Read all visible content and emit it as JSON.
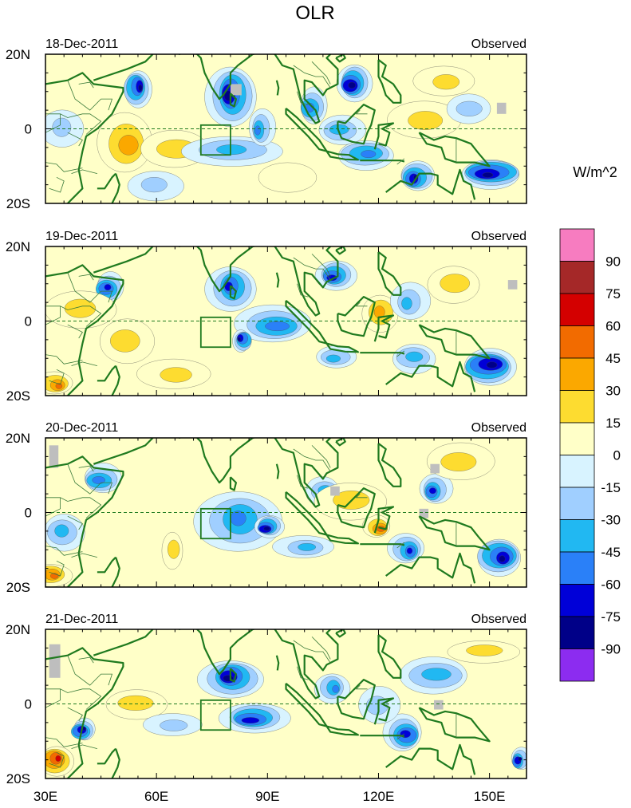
{
  "title": "OLR",
  "units_label": "W/m^2",
  "colors": {
    "coast": "#1f7a1f",
    "border": "#3a7a3a",
    "missing": "#bebebe",
    "equator": "#1f7a1f"
  },
  "chart_data": {
    "type": "heatmap",
    "title": "OLR",
    "variable": "OLR anomaly",
    "units": "W/m^2",
    "x_ticks": [
      "30E",
      "60E",
      "90E",
      "120E",
      "150E"
    ],
    "x_tick_values": [
      30,
      60,
      90,
      120,
      150
    ],
    "xlim": [
      30,
      160
    ],
    "y_ticks": [
      "20N",
      "0",
      "20S"
    ],
    "y_tick_values": [
      20,
      0,
      -20
    ],
    "ylim": [
      -20,
      20
    ],
    "box_region": {
      "lon": [
        72,
        80
      ],
      "lat": [
        -7,
        1
      ]
    },
    "legend": {
      "position": "right",
      "levels": [
        -90,
        -75,
        -60,
        -45,
        -30,
        -15,
        0,
        15,
        30,
        45,
        60,
        75,
        90
      ],
      "labels": [
        "90",
        "75",
        "60",
        "45",
        "30",
        "15",
        "0",
        "-15",
        "-30",
        "-45",
        "-60",
        "-75",
        "-90"
      ],
      "colors_top_to_bottom": [
        "#f77cc0",
        "#a52828",
        "#d40000",
        "#f26b00",
        "#fba800",
        "#fddc30",
        "#ffffc8",
        "#d8f3ff",
        "#a0cfff",
        "#21b8f2",
        "#2a80f8",
        "#0000d8",
        "#000088",
        "#8c2cf0"
      ]
    },
    "panels": [
      {
        "date": "18-Dec-2011",
        "label": "Observed",
        "features": [
          {
            "lon": 80,
            "lat": 9,
            "rx": 7,
            "ry": 8,
            "v": -80
          },
          {
            "lon": 113,
            "lat": 12,
            "rx": 6,
            "ry": 5,
            "v": -90
          },
          {
            "lon": 102,
            "lat": 6,
            "rx": 5,
            "ry": 5,
            "v": -50
          },
          {
            "lon": 55,
            "lat": 11,
            "rx": 4,
            "ry": 5,
            "v": -85
          },
          {
            "lon": 35,
            "lat": 0,
            "rx": 6,
            "ry": 5,
            "v": -30
          },
          {
            "lon": 52,
            "lat": -4,
            "rx": 10,
            "ry": 8,
            "v": 35
          },
          {
            "lon": 65,
            "lat": -5,
            "rx": 12,
            "ry": 5,
            "v": 20
          },
          {
            "lon": 80,
            "lat": -6,
            "rx": 14,
            "ry": 4,
            "v": -35
          },
          {
            "lon": 88,
            "lat": 0,
            "rx": 4,
            "ry": 5,
            "v": -55
          },
          {
            "lon": 110,
            "lat": 0,
            "rx": 9,
            "ry": 4,
            "v": -45
          },
          {
            "lon": 117,
            "lat": -7,
            "rx": 9,
            "ry": 4,
            "v": -60
          },
          {
            "lon": 133,
            "lat": 2,
            "rx": 10,
            "ry": 5,
            "v": 25
          },
          {
            "lon": 138,
            "lat": 13,
            "rx": 10,
            "ry": 4,
            "v": 30
          },
          {
            "lon": 150,
            "lat": -12,
            "rx": 11,
            "ry": 4,
            "v": -90
          },
          {
            "lon": 130,
            "lat": -13,
            "rx": 5,
            "ry": 4,
            "v": -80
          },
          {
            "lon": 95,
            "lat": -13,
            "rx": 8,
            "ry": 4,
            "v": 15
          },
          {
            "lon": 60,
            "lat": -15,
            "rx": 10,
            "ry": 4,
            "v": -30
          },
          {
            "lon": 145,
            "lat": 5,
            "rx": 8,
            "ry": 4,
            "v": -25
          }
        ],
        "missing_boxes": [
          [
            80,
            12,
            3,
            3
          ],
          [
            152,
            7,
            2.5,
            3
          ]
        ]
      },
      {
        "date": "19-Dec-2011",
        "label": "Observed",
        "features": [
          {
            "lon": 80,
            "lat": 9,
            "rx": 7,
            "ry": 6,
            "v": -75
          },
          {
            "lon": 108,
            "lat": 12,
            "rx": 7,
            "ry": 4,
            "v": -75
          },
          {
            "lon": 47,
            "lat": 9,
            "rx": 5,
            "ry": 4,
            "v": -75
          },
          {
            "lon": 52,
            "lat": -5,
            "rx": 8,
            "ry": 6,
            "v": 30
          },
          {
            "lon": 40,
            "lat": 3,
            "rx": 10,
            "ry": 5,
            "v": 18
          },
          {
            "lon": 92,
            "lat": -1,
            "rx": 14,
            "ry": 5,
            "v": -50
          },
          {
            "lon": 83,
            "lat": -5,
            "rx": 3,
            "ry": 3,
            "v": -80
          },
          {
            "lon": 120,
            "lat": 2,
            "rx": 5,
            "ry": 5,
            "v": 40
          },
          {
            "lon": 128,
            "lat": 5,
            "rx": 6,
            "ry": 5,
            "v": -35
          },
          {
            "lon": 150,
            "lat": -12,
            "rx": 10,
            "ry": 5,
            "v": -90
          },
          {
            "lon": 130,
            "lat": -10,
            "rx": 7,
            "ry": 4,
            "v": -40
          },
          {
            "lon": 33,
            "lat": -17,
            "rx": 5,
            "ry": 3,
            "v": 60
          },
          {
            "lon": 65,
            "lat": -14,
            "rx": 12,
            "ry": 4,
            "v": 18
          },
          {
            "lon": 140,
            "lat": 10,
            "rx": 10,
            "ry": 5,
            "v": 20
          },
          {
            "lon": 108,
            "lat": -10,
            "rx": 6,
            "ry": 3,
            "v": -45
          }
        ],
        "missing_boxes": [
          [
            155,
            11,
            2.5,
            2.5
          ]
        ]
      },
      {
        "date": "20-Dec-2011",
        "label": "Observed",
        "features": [
          {
            "lon": 82,
            "lat": -2,
            "rx": 12,
            "ry": 8,
            "v": -55
          },
          {
            "lon": 90,
            "lat": -4,
            "rx": 5,
            "ry": 3,
            "v": -80
          },
          {
            "lon": 45,
            "lat": 9,
            "rx": 7,
            "ry": 4,
            "v": -60
          },
          {
            "lon": 35,
            "lat": -5,
            "rx": 6,
            "ry": 5,
            "v": -45
          },
          {
            "lon": 32,
            "lat": -17,
            "rx": 6,
            "ry": 3,
            "v": 60
          },
          {
            "lon": 120,
            "lat": -4,
            "rx": 5,
            "ry": 3,
            "v": 55
          },
          {
            "lon": 105,
            "lat": 6,
            "rx": 6,
            "ry": 4,
            "v": -40
          },
          {
            "lon": 112,
            "lat": 3,
            "rx": 10,
            "ry": 5,
            "v": 25
          },
          {
            "lon": 135,
            "lat": 6,
            "rx": 5,
            "ry": 4,
            "v": -75
          },
          {
            "lon": 142,
            "lat": 14,
            "rx": 13,
            "ry": 5,
            "v": 30
          },
          {
            "lon": 153,
            "lat": -12,
            "rx": 7,
            "ry": 5,
            "v": -90
          },
          {
            "lon": 128,
            "lat": -10,
            "rx": 5,
            "ry": 4,
            "v": -70
          },
          {
            "lon": 100,
            "lat": -9,
            "rx": 10,
            "ry": 3,
            "v": -40
          },
          {
            "lon": 64,
            "lat": -10,
            "rx": 4,
            "ry": 5,
            "v": 25
          }
        ],
        "missing_boxes": [
          [
            107,
            7,
            2.5,
            2.5
          ],
          [
            134,
            13,
            2.5,
            2.5
          ],
          [
            131,
            1,
            2.5,
            2.5
          ],
          [
            31,
            18,
            2.5,
            6
          ]
        ]
      },
      {
        "date": "21-Dec-2011",
        "label": "Observed",
        "features": [
          {
            "lon": 80,
            "lat": 7,
            "rx": 9,
            "ry": 5,
            "v": -90
          },
          {
            "lon": 86,
            "lat": -4,
            "rx": 12,
            "ry": 4,
            "v": -75
          },
          {
            "lon": 40,
            "lat": -7,
            "rx": 4,
            "ry": 3,
            "v": -80
          },
          {
            "lon": 33,
            "lat": -15,
            "rx": 5,
            "ry": 4,
            "v": 70
          },
          {
            "lon": 108,
            "lat": 4,
            "rx": 5,
            "ry": 4,
            "v": -60
          },
          {
            "lon": 127,
            "lat": -8,
            "rx": 7,
            "ry": 5,
            "v": -75
          },
          {
            "lon": 135,
            "lat": 8,
            "rx": 12,
            "ry": 5,
            "v": -40
          },
          {
            "lon": 148,
            "lat": 14,
            "rx": 10,
            "ry": 3,
            "v": 25
          },
          {
            "lon": 158,
            "lat": -15,
            "rx": 3,
            "ry": 3,
            "v": -90
          },
          {
            "lon": 120,
            "lat": 0,
            "rx": 8,
            "ry": 5,
            "v": -30
          },
          {
            "lon": 55,
            "lat": 0,
            "rx": 10,
            "ry": 4,
            "v": 18
          },
          {
            "lon": 65,
            "lat": -6,
            "rx": 8,
            "ry": 3,
            "v": -30
          }
        ],
        "missing_boxes": [
          [
            135,
            1,
            2.5,
            2.5
          ],
          [
            31,
            16,
            3,
            9
          ]
        ]
      }
    ]
  }
}
